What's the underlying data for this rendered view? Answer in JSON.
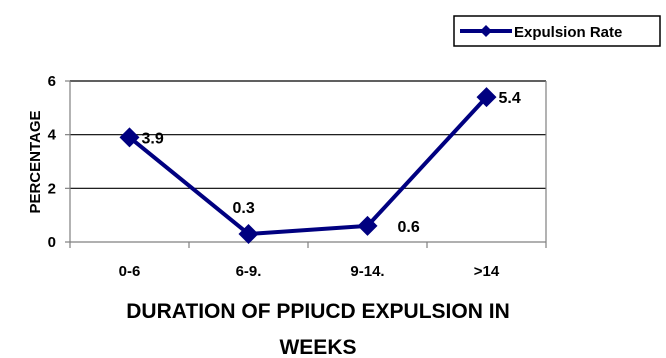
{
  "chart_data": {
    "type": "line",
    "categories": [
      "0-6",
      "6-9.",
      "9-14.",
      ">14"
    ],
    "series": [
      {
        "name": "Expulsion Rate",
        "values": [
          3.9,
          0.3,
          0.6,
          5.4
        ],
        "labels": [
          "3.9",
          "0.3",
          "0.6",
          "5.4"
        ]
      }
    ],
    "ylabel": "PERCENTAGE",
    "xlabel_lines": [
      "DURATION OF PPIUCD EXPULSION IN",
      "WEEKS"
    ],
    "ylim": [
      0,
      6
    ],
    "yticks": [
      "0",
      "2",
      "4",
      "6"
    ],
    "grid": true,
    "legend_position": "top-right",
    "colors": {
      "series": "#000080",
      "grid": "#000000",
      "axis": "#808080"
    }
  }
}
